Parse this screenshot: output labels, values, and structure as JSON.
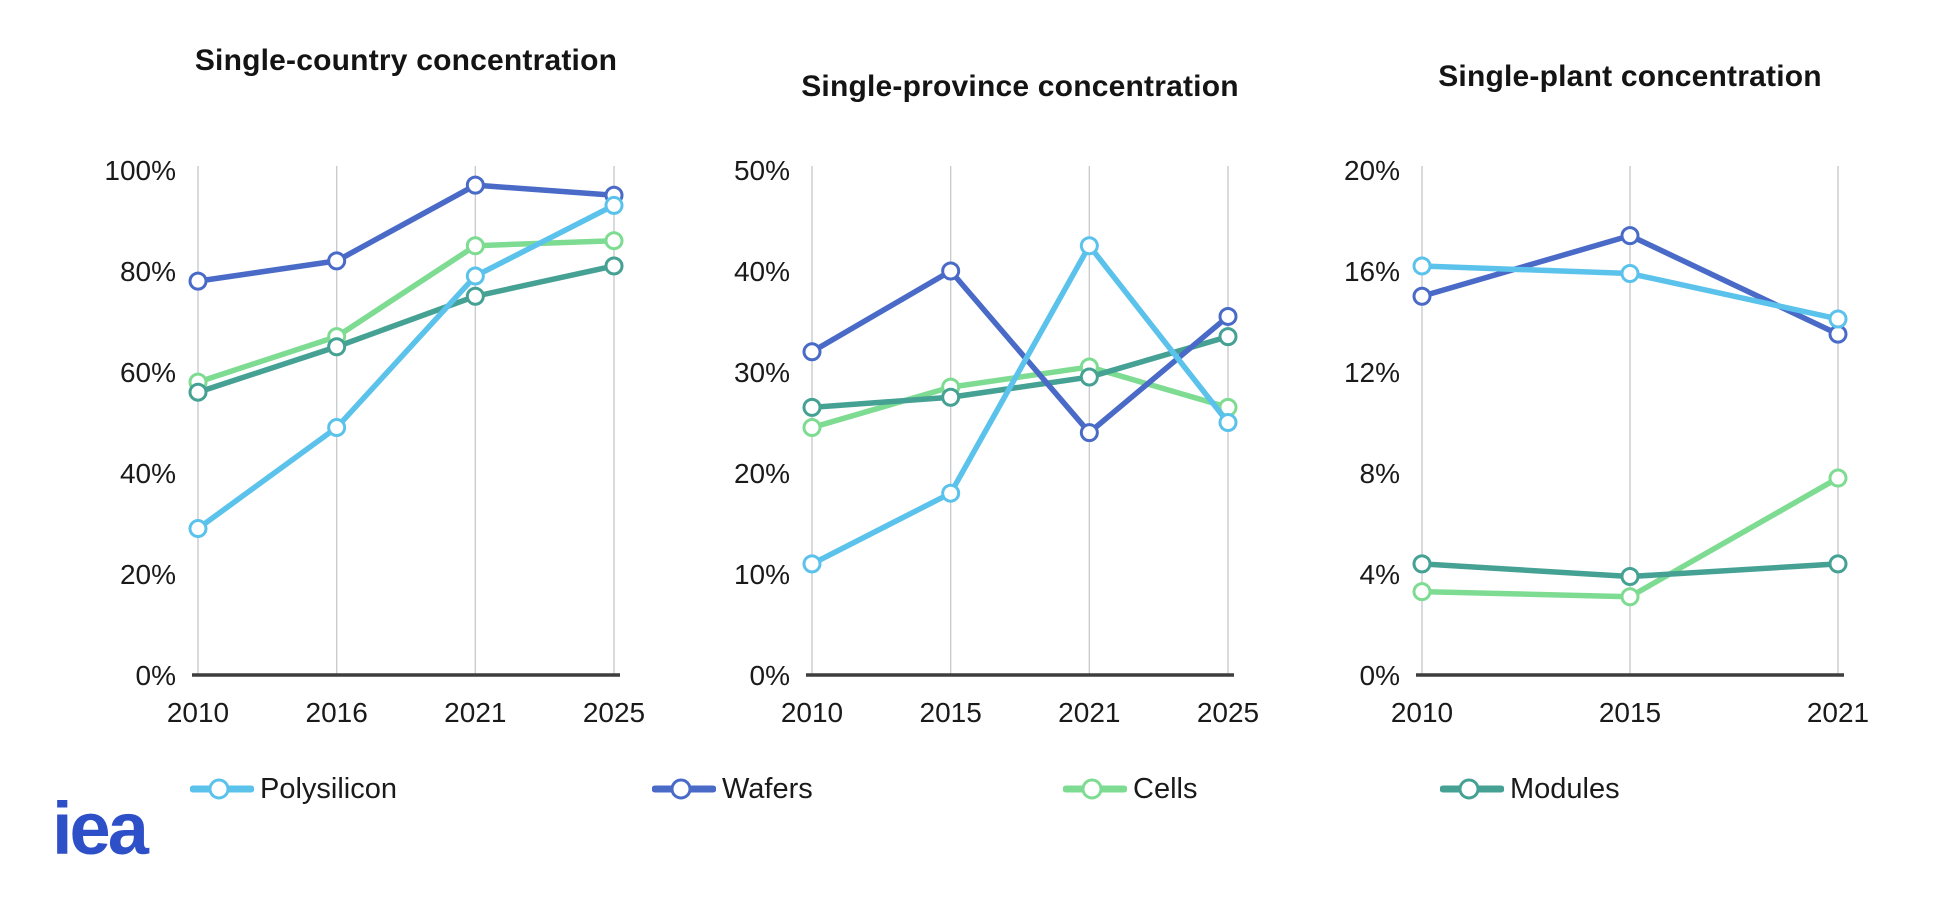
{
  "page": {
    "background": "#ffffff"
  },
  "logo": {
    "text": "iea",
    "color": "#2d4fc8"
  },
  "legend": [
    {
      "label": "Polysilicon",
      "color": "#5bc2ec"
    },
    {
      "label": "Wafers",
      "color": "#4a6ac8"
    },
    {
      "label": "Cells",
      "color": "#7edc92"
    },
    {
      "label": "Modules",
      "color": "#45a193"
    }
  ],
  "chart_data": [
    {
      "type": "line",
      "title": "Single-country concentration",
      "categories": [
        "2010",
        "2016",
        "2021",
        "2025"
      ],
      "unit": "%",
      "ylim": [
        0,
        100
      ],
      "ytick_step": 20,
      "grid": "vertical-only",
      "legend_position": "bottom",
      "series": [
        {
          "name": "Polysilicon",
          "color": "#5bc2ec",
          "values": [
            29,
            49,
            79,
            93
          ]
        },
        {
          "name": "Wafers",
          "color": "#4a6ac8",
          "values": [
            78,
            82,
            97,
            95
          ]
        },
        {
          "name": "Cells",
          "color": "#7edc92",
          "values": [
            58,
            67,
            85,
            86
          ]
        },
        {
          "name": "Modules",
          "color": "#45a193",
          "values": [
            56,
            65,
            75,
            81
          ]
        }
      ]
    },
    {
      "type": "line",
      "title": "Single-province concentration",
      "categories": [
        "2010",
        "2015",
        "2021",
        "2025"
      ],
      "unit": "%",
      "ylim": [
        0,
        50
      ],
      "ytick_step": 10,
      "grid": "vertical-only",
      "legend_position": "bottom",
      "series": [
        {
          "name": "Polysilicon",
          "color": "#5bc2ec",
          "values": [
            11,
            18,
            42.5,
            25
          ]
        },
        {
          "name": "Wafers",
          "color": "#4a6ac8",
          "values": [
            32,
            40,
            24,
            35.5
          ]
        },
        {
          "name": "Cells",
          "color": "#7edc92",
          "values": [
            24.5,
            28.5,
            30.5,
            26.5
          ]
        },
        {
          "name": "Modules",
          "color": "#45a193",
          "values": [
            26.5,
            27.5,
            29.5,
            33.5
          ]
        }
      ]
    },
    {
      "type": "line",
      "title": "Single-plant concentration",
      "categories": [
        "2010",
        "2015",
        "2021"
      ],
      "unit": "%",
      "ylim": [
        0,
        20
      ],
      "ytick_step": 4,
      "grid": "vertical-only",
      "legend_position": "bottom",
      "series": [
        {
          "name": "Polysilicon",
          "color": "#5bc2ec",
          "values": [
            16.2,
            15.9,
            14.1
          ]
        },
        {
          "name": "Wafers",
          "color": "#4a6ac8",
          "values": [
            15,
            17.4,
            13.5
          ]
        },
        {
          "name": "Cells",
          "color": "#7edc92",
          "values": [
            3.3,
            3.1,
            7.8
          ]
        },
        {
          "name": "Modules",
          "color": "#45a193",
          "values": [
            4.4,
            3.9,
            4.4
          ]
        }
      ]
    }
  ]
}
